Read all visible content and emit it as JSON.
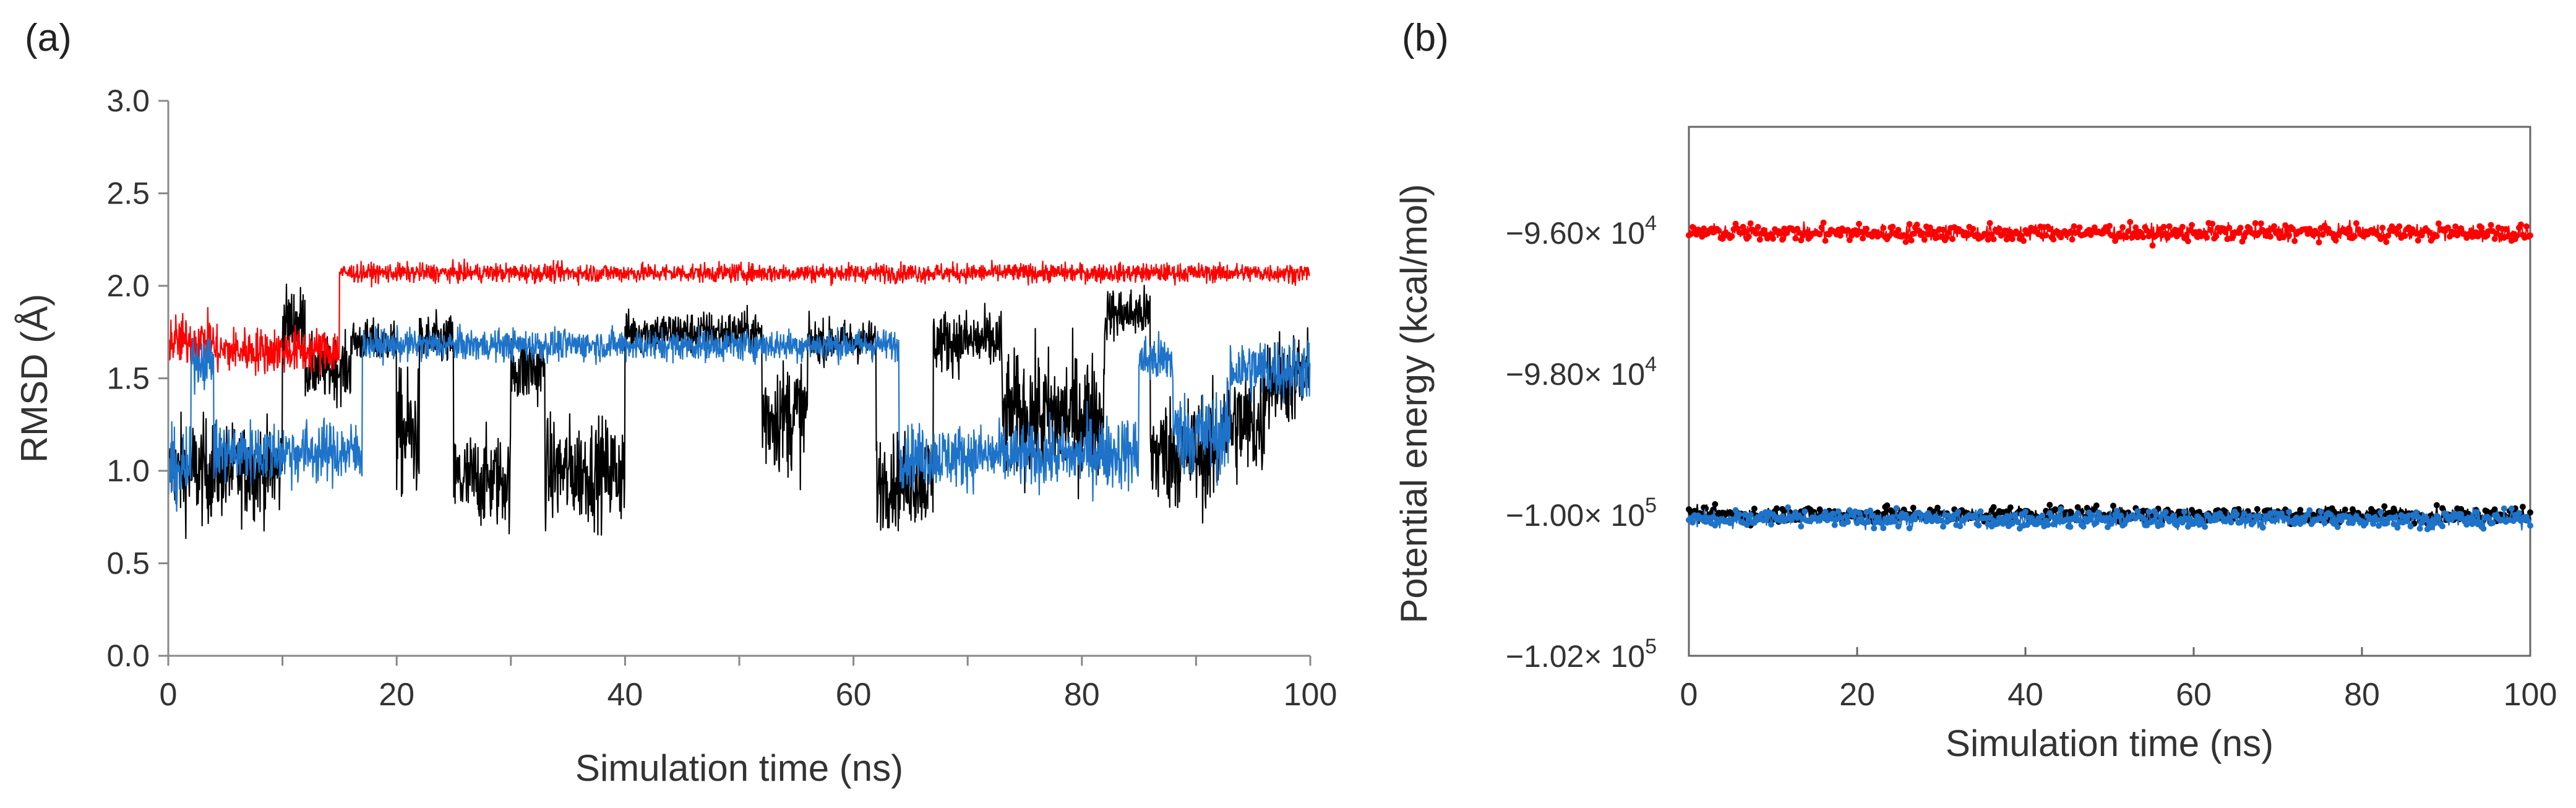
{
  "figure_labels": {
    "a": "(a)",
    "b": "(b)"
  },
  "series_colors": {
    "black": "#000000",
    "red": "#ff0000",
    "blue": "#1e73c8"
  },
  "chart_data": [
    {
      "type": "line",
      "panel": "(a)",
      "title": "",
      "xlabel": "Simulation time (ns)",
      "ylabel": "RMSD (Å)",
      "xlim": [
        0,
        100
      ],
      "ylim": [
        0,
        3.0
      ],
      "xticks": [
        0,
        20,
        40,
        60,
        80,
        100
      ],
      "xtick_labels": [
        "0",
        "20",
        "40",
        "60",
        "80",
        "100"
      ],
      "yticks": [
        0,
        0.5,
        1.0,
        1.5,
        2.0,
        2.5,
        3.0
      ],
      "ytick_labels": [
        "0.0",
        "0.5",
        "1.0",
        "1.5",
        "2.0",
        "2.5",
        "3.0"
      ],
      "grid": false,
      "legend": "none",
      "series": [
        {
          "name": "black",
          "color": "#000000",
          "segments": [
            {
              "t0": 0,
              "t1": 1,
              "mean": 1.0,
              "noise": 0.35
            },
            {
              "t0": 1,
              "t1": 4,
              "mean": 1.0,
              "noise": 0.5
            },
            {
              "t0": 4,
              "t1": 10,
              "mean": 1.0,
              "noise": 0.45
            },
            {
              "t0": 10,
              "t1": 12,
              "mean": 1.8,
              "noise": 0.35
            },
            {
              "t0": 12,
              "t1": 16,
              "mean": 1.55,
              "noise": 0.3
            },
            {
              "t0": 16,
              "t1": 20,
              "mean": 1.7,
              "noise": 0.2
            },
            {
              "t0": 20,
              "t1": 22,
              "mean": 1.2,
              "noise": 0.6
            },
            {
              "t0": 22,
              "t1": 25,
              "mean": 1.7,
              "noise": 0.25
            },
            {
              "t0": 25,
              "t1": 30,
              "mean": 0.95,
              "noise": 0.45
            },
            {
              "t0": 30,
              "t1": 33,
              "mean": 1.55,
              "noise": 0.35
            },
            {
              "t0": 33,
              "t1": 40,
              "mean": 1.0,
              "noise": 0.5
            },
            {
              "t0": 40,
              "t1": 52,
              "mean": 1.75,
              "noise": 0.2
            },
            {
              "t0": 52,
              "t1": 56,
              "mean": 1.3,
              "noise": 0.55
            },
            {
              "t0": 56,
              "t1": 62,
              "mean": 1.7,
              "noise": 0.2
            },
            {
              "t0": 62,
              "t1": 67,
              "mean": 0.95,
              "noise": 0.45
            },
            {
              "t0": 67,
              "t1": 73,
              "mean": 1.7,
              "noise": 0.3
            },
            {
              "t0": 73,
              "t1": 82,
              "mean": 1.3,
              "noise": 0.6
            },
            {
              "t0": 82,
              "t1": 86,
              "mean": 1.85,
              "noise": 0.25
            },
            {
              "t0": 86,
              "t1": 92,
              "mean": 1.1,
              "noise": 0.55
            },
            {
              "t0": 92,
              "t1": 96,
              "mean": 1.25,
              "noise": 0.55
            },
            {
              "t0": 96,
              "t1": 100,
              "mean": 1.5,
              "noise": 0.45
            }
          ]
        },
        {
          "name": "red",
          "color": "#ff0000",
          "segments": [
            {
              "t0": 0,
              "t1": 4,
              "mean": 1.7,
              "noise": 0.25
            },
            {
              "t0": 4,
              "t1": 15,
              "mean": 1.65,
              "noise": 0.22
            },
            {
              "t0": 15,
              "t1": 62,
              "mean": 2.07,
              "noise": 0.09
            },
            {
              "t0": 62,
              "t1": 100,
              "mean": 2.07,
              "noise": 0.09
            }
          ]
        },
        {
          "name": "blue",
          "color": "#1e73c8",
          "segments": [
            {
              "t0": 0,
              "t1": 2,
              "mean": 1.0,
              "noise": 0.35
            },
            {
              "t0": 2,
              "t1": 4,
              "mean": 1.6,
              "noise": 0.25
            },
            {
              "t0": 4,
              "t1": 17,
              "mean": 1.1,
              "noise": 0.3
            },
            {
              "t0": 17,
              "t1": 64,
              "mean": 1.68,
              "noise": 0.15
            },
            {
              "t0": 64,
              "t1": 80,
              "mean": 1.08,
              "noise": 0.3
            },
            {
              "t0": 80,
              "t1": 85,
              "mean": 1.1,
              "noise": 0.35
            },
            {
              "t0": 85,
              "t1": 88,
              "mean": 1.6,
              "noise": 0.25
            },
            {
              "t0": 88,
              "t1": 93,
              "mean": 1.2,
              "noise": 0.4
            },
            {
              "t0": 93,
              "t1": 100,
              "mean": 1.55,
              "noise": 0.3
            }
          ]
        }
      ]
    },
    {
      "type": "line",
      "panel": "(b)",
      "title": "",
      "xlabel": "Simulation time (ns)",
      "ylabel": "Potential energy (kcal/mol)",
      "xlim": [
        0,
        100
      ],
      "ylim": [
        -102000,
        -94500
      ],
      "xticks": [
        0,
        20,
        40,
        60,
        80,
        100
      ],
      "xtick_labels": [
        "0",
        "20",
        "40",
        "60",
        "80",
        "100"
      ],
      "yticks": [
        -96000,
        -98000,
        -100000,
        -102000
      ],
      "ytick_labels": [
        {
          "mantissa": "−9.60× 10",
          "exp": "4"
        },
        {
          "mantissa": "−9.80× 10",
          "exp": "4"
        },
        {
          "mantissa": "−1.00× 10",
          "exp": "5"
        },
        {
          "mantissa": "−1.02× 10",
          "exp": "5"
        }
      ],
      "grid": false,
      "legend": "none",
      "series": [
        {
          "name": "red",
          "color": "#ff0000",
          "mean": -96000,
          "noise": 150,
          "markers": true
        },
        {
          "name": "black",
          "color": "#000000",
          "mean": -100000,
          "noise": 140,
          "markers": true
        },
        {
          "name": "blue",
          "color": "#1e73c8",
          "mean": -100060,
          "noise": 150,
          "markers": true
        }
      ]
    }
  ]
}
